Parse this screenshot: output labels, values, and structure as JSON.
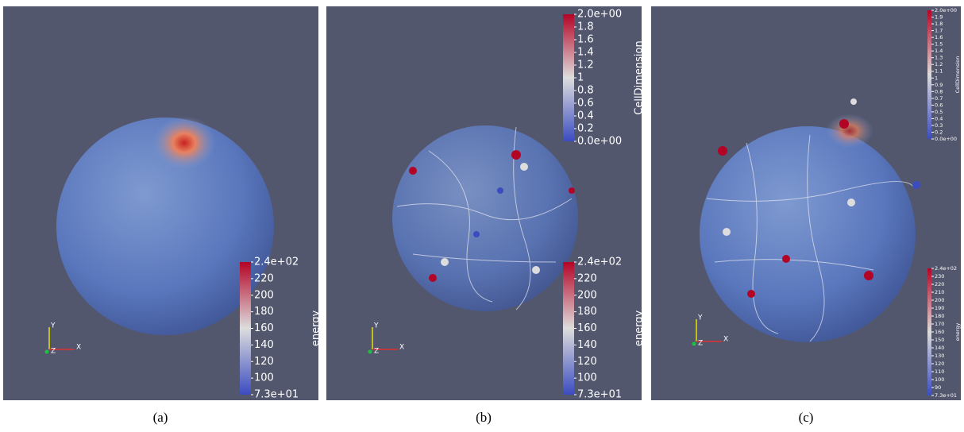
{
  "panels": [
    {
      "caption": "(a)",
      "colorbars": [
        {
          "title": "energy",
          "ticks": [
            "2.4e+02",
            "220",
            "200",
            "180",
            "160",
            "140",
            "120",
            "100",
            "7.3e+01"
          ]
        }
      ],
      "axes": {
        "y": "Y",
        "z": "Z",
        "x": "X"
      }
    },
    {
      "caption": "(b)",
      "colorbars": [
        {
          "title": "CellDimension",
          "ticks": [
            "2.0e+00",
            "1.8",
            "1.6",
            "1.4",
            "1.2",
            "1",
            "0.8",
            "0.6",
            "0.4",
            "0.2",
            "0.0e+00"
          ]
        },
        {
          "title": "energy",
          "ticks": [
            "2.4e+02",
            "220",
            "200",
            "180",
            "160",
            "140",
            "120",
            "100",
            "7.3e+01"
          ]
        }
      ],
      "axes": {
        "y": "Y",
        "z": "Z",
        "x": "X"
      }
    },
    {
      "caption": "(c)",
      "colorbars": [
        {
          "title": "CellDimension",
          "ticks": [
            "2.0e+00",
            "1.9",
            "1.8",
            "1.7",
            "1.6",
            "1.5",
            "1.4",
            "1.3",
            "1.2",
            "1.1",
            "1",
            "0.9",
            "0.8",
            "0.7",
            "0.6",
            "0.5",
            "0.4",
            "0.3",
            "0.2",
            "0.0e+00"
          ]
        },
        {
          "title": "energy",
          "ticks": [
            "2.4e+02",
            "230",
            "220",
            "210",
            "200",
            "190",
            "180",
            "170",
            "160",
            "150",
            "140",
            "130",
            "120",
            "110",
            "100",
            "90",
            "7.3e+01"
          ]
        }
      ],
      "axes": {
        "y": "Y",
        "z": "Z",
        "x": "X"
      }
    }
  ]
}
